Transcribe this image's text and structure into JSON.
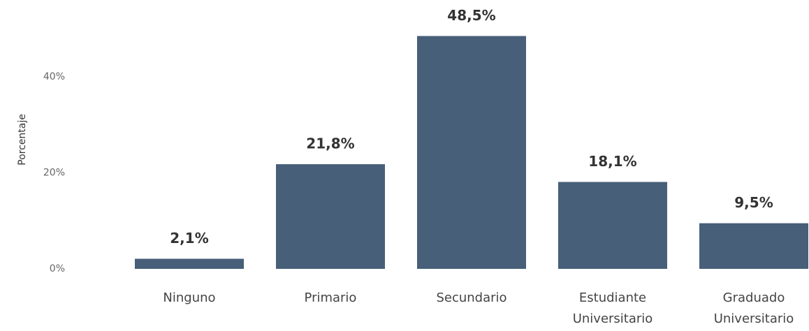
{
  "chart_data": {
    "type": "bar",
    "y_label": "Porcentaje",
    "categories": [
      "Ninguno",
      "Primario",
      "Secundario",
      "Estudiante Universitario",
      "Graduado Universitario"
    ],
    "values": [
      2.1,
      21.8,
      48.5,
      18.1,
      9.5
    ],
    "value_labels": [
      "2,1%",
      "21,8%",
      "48,5%",
      "18,1%",
      "9,5%"
    ],
    "color": "#475f78",
    "ylim": [
      0,
      56
    ],
    "yticks": [
      {
        "value": 0,
        "label": "0%"
      },
      {
        "value": 20,
        "label": "20%"
      },
      {
        "value": 40,
        "label": "40%"
      }
    ],
    "grid": false
  }
}
